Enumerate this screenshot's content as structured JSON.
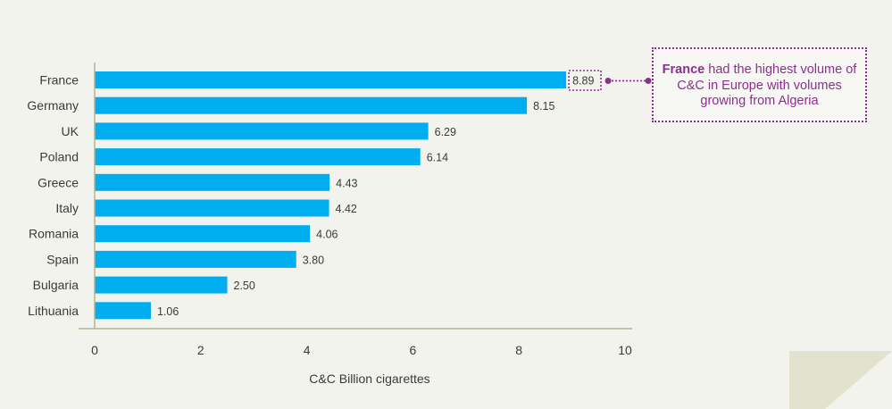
{
  "chart_data": {
    "type": "bar",
    "orientation": "horizontal",
    "categories": [
      "France",
      "Germany",
      "UK",
      "Poland",
      "Greece",
      "Italy",
      "Romania",
      "Spain",
      "Bulgaria",
      "Lithuania"
    ],
    "values": [
      8.89,
      8.15,
      6.29,
      6.14,
      4.43,
      4.42,
      4.06,
      3.8,
      2.5,
      1.06
    ],
    "value_labels": [
      "8.89",
      "8.15",
      "6.29",
      "6.14",
      "4.43",
      "4.42",
      "4.06",
      "3.80",
      "2.50",
      "1.06"
    ],
    "xlabel": "C&C Billion cigarettes",
    "xlim": [
      0,
      10
    ],
    "xticks": [
      "0",
      "2",
      "4",
      "6",
      "8",
      "10"
    ],
    "grid": false,
    "bar_color": "#00aeef",
    "highlight_index": 0
  },
  "annotation": {
    "bold": "France",
    "text": " had the highest volume of C&C in Europe with volumes growing from Algeria",
    "color": "#8e2e91"
  },
  "colors": {
    "background": "#f3f3ee",
    "axis": "#b3b38f",
    "fold": "#e2e2cf"
  }
}
